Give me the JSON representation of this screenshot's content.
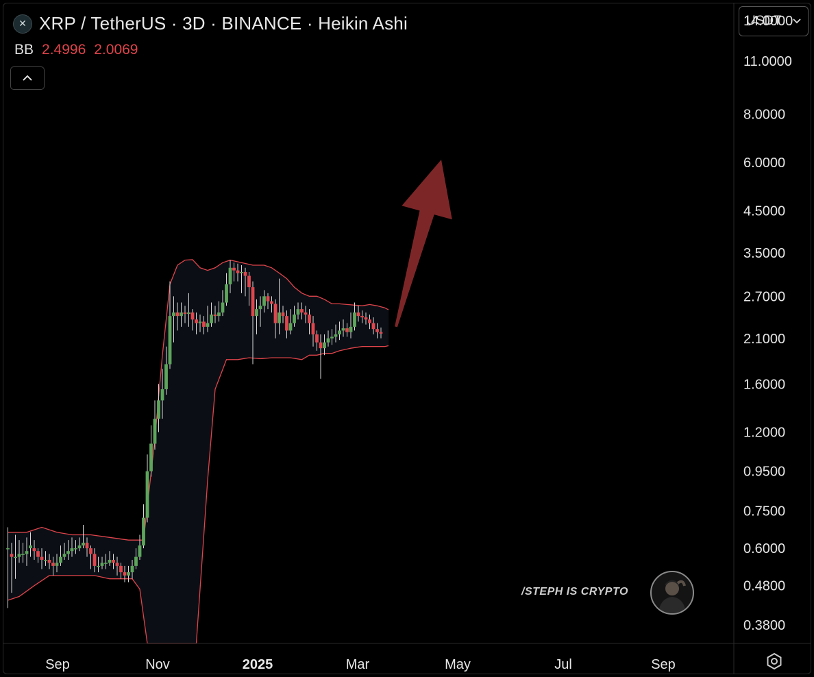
{
  "header": {
    "title": "XRP / TetherUS · 3D · BINANCE · Heikin Ashi",
    "symbol_icon": "xrp-logo-icon",
    "indicator_name": "BB",
    "indicator_values": [
      "2.4996",
      "2.0069"
    ]
  },
  "toolbar": {
    "currency_label": "USDT",
    "currency_dropdown_icon": "chevron-down-icon",
    "collapse_icon": "chevron-up-icon",
    "settings_icon": "gear-icon"
  },
  "watermark": {
    "text": "/STEPH IS CRYPTO"
  },
  "colors": {
    "up": "#5ea55c",
    "down": "#e0464e",
    "band": "#e0444b",
    "arrow": "#7d2628",
    "background": "#000000"
  },
  "chart_data": {
    "type": "candlestick",
    "style": "Heikin Ashi",
    "y_scale": "log",
    "ylim": [
      0.34,
      15.5
    ],
    "y_ticks": [
      "14.0000",
      "11.0000",
      "8.0000",
      "6.0000",
      "4.5000",
      "3.5000",
      "2.7000",
      "2.1000",
      "1.6000",
      "1.2000",
      "0.9500",
      "0.7500",
      "0.6000",
      "0.4800",
      "0.3800"
    ],
    "x_ticks": [
      "Sep",
      "Nov",
      "2025",
      "Mar",
      "May",
      "Jul",
      "Sep"
    ],
    "x_ticks_bold": [
      "2025"
    ],
    "candles": [
      [
        0.6,
        0.6,
        0.68,
        0.42
      ],
      [
        0.58,
        0.57,
        0.62,
        0.46
      ],
      [
        0.57,
        0.57,
        0.65,
        0.5
      ],
      [
        0.57,
        0.58,
        0.63,
        0.55
      ],
      [
        0.58,
        0.58,
        0.62,
        0.55
      ],
      [
        0.58,
        0.59,
        0.64,
        0.54
      ],
      [
        0.6,
        0.61,
        0.66,
        0.57
      ],
      [
        0.6,
        0.59,
        0.63,
        0.56
      ],
      [
        0.59,
        0.57,
        0.6,
        0.55
      ],
      [
        0.57,
        0.56,
        0.6,
        0.53
      ],
      [
        0.56,
        0.56,
        0.59,
        0.54
      ],
      [
        0.56,
        0.55,
        0.58,
        0.53
      ],
      [
        0.55,
        0.54,
        0.57,
        0.51
      ],
      [
        0.54,
        0.55,
        0.58,
        0.52
      ],
      [
        0.55,
        0.57,
        0.61,
        0.54
      ],
      [
        0.57,
        0.58,
        0.62,
        0.56
      ],
      [
        0.58,
        0.59,
        0.63,
        0.56
      ],
      [
        0.59,
        0.6,
        0.64,
        0.57
      ],
      [
        0.6,
        0.6,
        0.63,
        0.58
      ],
      [
        0.6,
        0.61,
        0.64,
        0.59
      ],
      [
        0.61,
        0.62,
        0.69,
        0.6
      ],
      [
        0.62,
        0.6,
        0.64,
        0.57
      ],
      [
        0.6,
        0.58,
        0.61,
        0.53
      ],
      [
        0.58,
        0.54,
        0.6,
        0.52
      ],
      [
        0.54,
        0.54,
        0.57,
        0.52
      ],
      [
        0.54,
        0.55,
        0.57,
        0.53
      ],
      [
        0.55,
        0.55,
        0.58,
        0.53
      ],
      [
        0.55,
        0.56,
        0.59,
        0.54
      ],
      [
        0.56,
        0.55,
        0.58,
        0.53
      ],
      [
        0.55,
        0.54,
        0.57,
        0.51
      ],
      [
        0.54,
        0.52,
        0.55,
        0.5
      ],
      [
        0.52,
        0.51,
        0.54,
        0.49
      ],
      [
        0.51,
        0.52,
        0.54,
        0.49
      ],
      [
        0.52,
        0.54,
        0.56,
        0.5
      ],
      [
        0.54,
        0.57,
        0.6,
        0.53
      ],
      [
        0.57,
        0.61,
        0.65,
        0.56
      ],
      [
        0.61,
        0.72,
        0.78,
        0.6
      ],
      [
        0.72,
        0.95,
        1.05,
        0.7
      ],
      [
        0.95,
        1.12,
        1.25,
        0.92
      ],
      [
        1.12,
        1.3,
        1.45,
        1.08
      ],
      [
        1.3,
        1.45,
        1.6,
        1.2
      ],
      [
        1.45,
        1.55,
        1.75,
        1.3
      ],
      [
        1.55,
        1.8,
        2.0,
        1.5
      ],
      [
        1.8,
        2.4,
        2.95,
        1.75
      ],
      [
        2.4,
        2.45,
        2.7,
        2.05
      ],
      [
        2.45,
        2.4,
        2.6,
        2.2
      ],
      [
        2.4,
        2.45,
        2.6,
        2.25
      ],
      [
        2.45,
        2.43,
        2.55,
        2.3
      ],
      [
        2.43,
        2.45,
        2.75,
        2.25
      ],
      [
        2.45,
        2.35,
        2.5,
        2.2
      ],
      [
        2.35,
        2.3,
        2.45,
        2.15
      ],
      [
        2.3,
        2.32,
        2.42,
        2.18
      ],
      [
        2.32,
        2.25,
        2.4,
        2.15
      ],
      [
        2.25,
        2.3,
        2.55,
        2.18
      ],
      [
        2.3,
        2.42,
        2.6,
        2.25
      ],
      [
        2.42,
        2.4,
        2.55,
        2.3
      ],
      [
        2.4,
        2.45,
        2.62,
        2.32
      ],
      [
        2.45,
        2.6,
        2.8,
        2.4
      ],
      [
        2.6,
        2.9,
        3.1,
        2.55
      ],
      [
        2.9,
        3.2,
        3.35,
        2.75
      ],
      [
        3.2,
        3.15,
        3.3,
        2.95
      ],
      [
        3.15,
        3.1,
        3.28,
        2.95
      ],
      [
        3.1,
        3.12,
        3.25,
        2.75
      ],
      [
        3.12,
        3.05,
        3.2,
        2.7
      ],
      [
        3.05,
        2.85,
        3.12,
        2.55
      ],
      [
        2.85,
        2.4,
        2.95,
        1.8
      ],
      [
        2.4,
        2.5,
        2.65,
        2.15
      ],
      [
        2.5,
        2.55,
        2.7,
        2.25
      ],
      [
        2.55,
        2.7,
        2.8,
        2.45
      ],
      [
        2.7,
        2.62,
        2.75,
        2.5
      ],
      [
        2.62,
        2.58,
        2.7,
        2.45
      ],
      [
        2.58,
        2.3,
        2.65,
        2.1
      ],
      [
        2.3,
        2.45,
        3.0,
        2.15
      ],
      [
        2.45,
        2.4,
        2.55,
        2.3
      ],
      [
        2.4,
        2.2,
        2.48,
        2.1
      ],
      [
        2.2,
        2.3,
        2.5,
        2.15
      ],
      [
        2.3,
        2.42,
        2.55,
        2.25
      ],
      [
        2.42,
        2.5,
        2.6,
        2.35
      ],
      [
        2.5,
        2.45,
        2.6,
        2.35
      ],
      [
        2.45,
        2.42,
        2.55,
        2.3
      ],
      [
        2.42,
        2.3,
        2.5,
        2.15
      ],
      [
        2.3,
        2.15,
        2.4,
        2.0
      ],
      [
        2.15,
        2.05,
        2.2,
        1.95
      ],
      [
        2.05,
        1.98,
        2.15,
        1.65
      ],
      [
        1.98,
        2.05,
        2.15,
        1.9
      ],
      [
        2.05,
        2.1,
        2.2,
        2.0
      ],
      [
        2.1,
        2.12,
        2.22,
        2.02
      ],
      [
        2.12,
        2.15,
        2.28,
        2.05
      ],
      [
        2.15,
        2.2,
        2.32,
        2.08
      ],
      [
        2.2,
        2.23,
        2.35,
        2.12
      ],
      [
        2.23,
        2.18,
        2.3,
        2.12
      ],
      [
        2.18,
        2.25,
        2.45,
        2.1
      ],
      [
        2.25,
        2.45,
        2.6,
        2.2
      ],
      [
        2.45,
        2.4,
        2.55,
        2.32
      ],
      [
        2.4,
        2.38,
        2.48,
        2.3
      ],
      [
        2.38,
        2.35,
        2.45,
        2.28
      ],
      [
        2.35,
        2.3,
        2.42,
        2.22
      ],
      [
        2.3,
        2.22,
        2.38,
        2.15
      ],
      [
        2.22,
        2.18,
        2.3,
        2.1
      ],
      [
        2.18,
        2.16,
        2.24,
        2.1
      ]
    ],
    "bb_upper": [
      [
        0,
        0.66
      ],
      [
        5,
        0.66
      ],
      [
        9,
        0.68
      ],
      [
        13,
        0.66
      ],
      [
        17,
        0.65
      ],
      [
        22,
        0.65
      ],
      [
        27,
        0.64
      ],
      [
        32,
        0.63
      ],
      [
        36,
        0.63
      ],
      [
        39,
        1.15
      ],
      [
        41,
        1.9
      ],
      [
        43,
        2.9
      ],
      [
        45,
        3.25
      ],
      [
        47,
        3.35
      ],
      [
        49,
        3.36
      ],
      [
        51,
        3.2
      ],
      [
        53,
        3.15
      ],
      [
        55,
        3.2
      ],
      [
        57,
        3.3
      ],
      [
        59,
        3.35
      ],
      [
        62,
        3.3
      ],
      [
        65,
        3.25
      ],
      [
        68,
        3.25
      ],
      [
        70,
        3.2
      ],
      [
        72,
        3.1
      ],
      [
        74,
        3.0
      ],
      [
        76,
        2.85
      ],
      [
        78,
        2.75
      ],
      [
        80,
        2.7
      ],
      [
        82,
        2.7
      ],
      [
        84,
        2.65
      ],
      [
        86,
        2.58
      ],
      [
        88,
        2.58
      ],
      [
        90,
        2.57
      ],
      [
        92,
        2.56
      ],
      [
        94,
        2.55
      ],
      [
        96,
        2.57
      ],
      [
        98,
        2.55
      ],
      [
        100,
        2.52
      ],
      [
        101,
        2.49
      ]
    ],
    "bb_lower": [
      [
        0,
        0.44
      ],
      [
        3,
        0.45
      ],
      [
        7,
        0.48
      ],
      [
        11,
        0.51
      ],
      [
        15,
        0.51
      ],
      [
        19,
        0.51
      ],
      [
        23,
        0.51
      ],
      [
        27,
        0.5
      ],
      [
        30,
        0.5
      ],
      [
        33,
        0.5
      ],
      [
        35,
        0.47
      ],
      [
        37,
        0.34
      ],
      [
        40,
        0.34
      ],
      [
        46,
        0.34
      ],
      [
        50,
        0.34
      ],
      [
        53,
        0.9
      ],
      [
        55,
        1.55
      ],
      [
        58,
        1.85
      ],
      [
        61,
        1.85
      ],
      [
        64,
        1.87
      ],
      [
        67,
        1.86
      ],
      [
        70,
        1.87
      ],
      [
        73,
        1.87
      ],
      [
        75,
        1.87
      ],
      [
        78,
        1.85
      ],
      [
        80,
        1.9
      ],
      [
        82,
        1.9
      ],
      [
        84,
        1.92
      ],
      [
        86,
        1.92
      ],
      [
        88,
        1.95
      ],
      [
        91,
        1.98
      ],
      [
        94,
        2.0
      ],
      [
        97,
        2.0
      ],
      [
        100,
        2.0
      ],
      [
        101,
        2.01
      ]
    ],
    "annotation": {
      "type": "arrow",
      "direction": "up",
      "from_index": 103,
      "from_value": 2.25,
      "to_index": 115,
      "to_value": 6.1
    }
  }
}
